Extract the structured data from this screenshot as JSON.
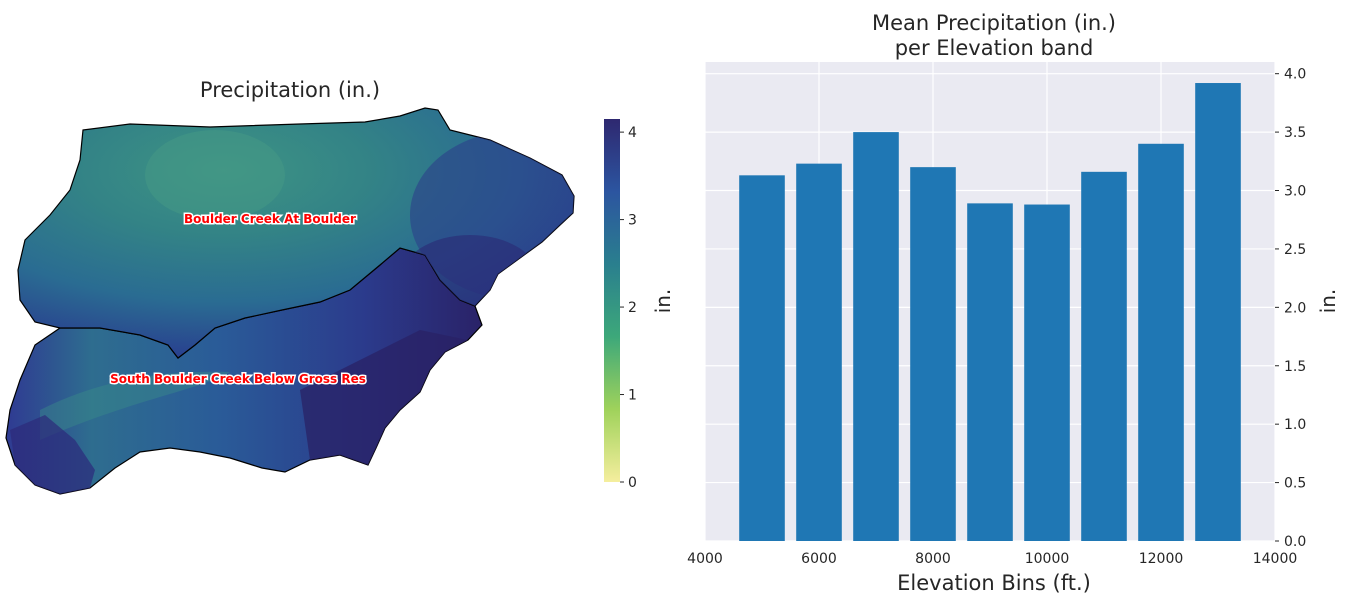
{
  "chart_data": [
    {
      "type": "heatmap",
      "title": "Precipitation (in.)",
      "colorbar": {
        "label": "in.",
        "ticks": [
          0,
          1,
          2,
          3,
          4
        ],
        "range": [
          0,
          4.15
        ],
        "colors": [
          "#f5ee9e",
          "#9fd25b",
          "#3da87a",
          "#2a7f8e",
          "#2c55a0",
          "#2e2870"
        ]
      },
      "annotations": [
        "Boulder Creek At Boulder",
        "South Boulder Creek Below Gross Res"
      ],
      "regions": [
        {
          "name": "Boulder Creek At Boulder",
          "precip_range_in": [
            2.3,
            4.1
          ]
        },
        {
          "name": "South Boulder Creek Below Gross Res",
          "precip_range_in": [
            2.4,
            4.1
          ]
        }
      ],
      "label_color": "#ff0000"
    },
    {
      "type": "bar",
      "title": "Mean Precipitation (in.)\nper Elevation band",
      "title_lines": [
        "Mean Precipitation (in.)",
        "per Elevation band"
      ],
      "xlabel": "Elevation Bins (ft.)",
      "ylabel": "in.",
      "x": [
        5000,
        6000,
        7000,
        8000,
        9000,
        10000,
        11000,
        12000,
        13000
      ],
      "values": [
        3.13,
        3.23,
        3.5,
        3.2,
        2.89,
        2.88,
        3.16,
        3.4,
        3.92
      ],
      "xlim": [
        4000,
        14000
      ],
      "ylim": [
        0,
        4.1
      ],
      "xticks": [
        4000,
        6000,
        8000,
        10000,
        12000,
        14000
      ],
      "yticks": [
        "0.0",
        "0.5",
        "1.0",
        "1.5",
        "2.0",
        "2.5",
        "3.0",
        "3.5",
        "4.0"
      ],
      "y_axis_side": "right",
      "grid": true,
      "bar_color": "#1f77b4",
      "background": "#eaeaf2"
    }
  ]
}
